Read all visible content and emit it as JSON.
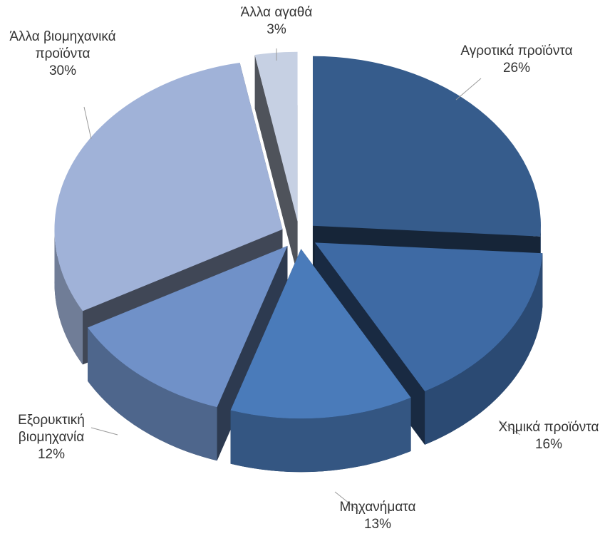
{
  "chart_data": {
    "type": "pie3d",
    "categories": [
      "Αγροτικά προϊόντα",
      "Χημικά προϊόντα",
      "Μηχανήματα",
      "Εξορυκτική βιομηχανία",
      "Άλλα βιομηχανικά προϊόντα",
      "Άλλα αγαθά"
    ],
    "values": [
      26,
      16,
      13,
      12,
      30,
      3
    ],
    "value_labels": [
      "26%",
      "16%",
      "13%",
      "12%",
      "30%",
      "3%"
    ],
    "colors": [
      "#365c8c",
      "#3e6aa4",
      "#4a7bba",
      "#7091c8",
      "#a0b2d8",
      "#c6d0e3"
    ]
  }
}
